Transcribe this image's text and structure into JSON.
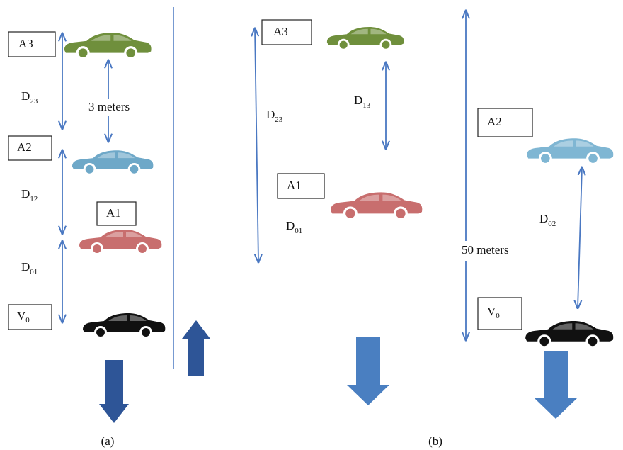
{
  "panel_a": {
    "caption": "(a)",
    "note": "3 meters",
    "boxes": {
      "a3": "A3",
      "a2": "A2",
      "a1": "A1",
      "v0": {
        "base": "V",
        "sub": "0"
      }
    },
    "distances": {
      "d23": {
        "base": "D",
        "sub": "23"
      },
      "d12": {
        "base": "D",
        "sub": "12"
      },
      "d01": {
        "base": "D",
        "sub": "01"
      }
    }
  },
  "panel_b": {
    "caption": "(b)",
    "note": "50 meters",
    "boxes": {
      "a3": "A3",
      "a2": "A2",
      "a1": "A1",
      "v0": {
        "base": "V",
        "sub": "0"
      }
    },
    "distances": {
      "d23": {
        "base": "D",
        "sub": "23"
      },
      "d13": {
        "base": "D",
        "sub": "13"
      },
      "d01": {
        "base": "D",
        "sub": "01"
      },
      "d02": {
        "base": "D",
        "sub": "02"
      }
    }
  }
}
